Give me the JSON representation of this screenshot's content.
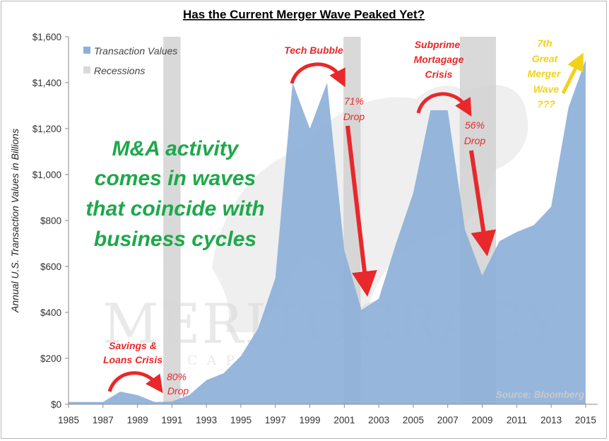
{
  "chart_data": {
    "type": "area",
    "title": "Has the Current Merger Wave Peaked Yet?",
    "xlabel": "",
    "ylabel": "Annual U.S. Transaction Values in Billions",
    "xlim": [
      1985,
      2015.7
    ],
    "ylim": [
      0,
      1600
    ],
    "y_ticks": [
      0,
      200,
      400,
      600,
      800,
      1000,
      1200,
      1400,
      1600
    ],
    "y_tick_labels": [
      "$0",
      "$200",
      "$400",
      "$600",
      "$800",
      "$1,000",
      "$1,200",
      "$1,400",
      "$1,600"
    ],
    "x_ticks": [
      1985,
      1987,
      1989,
      1991,
      1993,
      1995,
      1997,
      1999,
      2001,
      2003,
      2005,
      2007,
      2009,
      2011,
      2013,
      2015
    ],
    "x_tick_labels": [
      "1985",
      "1987",
      "1989",
      "1991",
      "1993",
      "1995",
      "1997",
      "1999",
      "2001",
      "2003",
      "2005",
      "2007",
      "2009",
      "2011",
      "2013",
      "2015"
    ],
    "series": [
      {
        "name": "Transaction Values",
        "color": "#8db0d9",
        "x": [
          1985,
          1986,
          1987,
          1988,
          1989,
          1990,
          1991,
          1992,
          1993,
          1994,
          1995,
          1996,
          1997,
          1998,
          1999,
          2000,
          2001,
          2002,
          2003,
          2004,
          2005,
          2006,
          2007,
          2008,
          2009,
          2010,
          2011,
          2012,
          2013,
          2014,
          2015
        ],
        "values": [
          10,
          10,
          10,
          55,
          40,
          10,
          12,
          40,
          105,
          135,
          210,
          330,
          550,
          1400,
          1200,
          1400,
          670,
          410,
          460,
          700,
          920,
          1280,
          1280,
          760,
          560,
          710,
          750,
          780,
          860,
          1290,
          1500
        ]
      }
    ],
    "recessions": [
      {
        "name": "Recessions",
        "start": 1990.5,
        "end": 1991.5
      },
      {
        "name": "Recessions",
        "start": 2000.95,
        "end": 2001.95
      },
      {
        "name": "Recessions",
        "start": 2007.7,
        "end": 2009.8
      }
    ],
    "recession_color": "#d9d9d9",
    "legend": [
      {
        "label": "Transaction Values",
        "color": "#8db0d9"
      },
      {
        "label": "Recessions",
        "color": "#d9d9d9"
      }
    ],
    "legend_position": "top-left",
    "annotations": {
      "savings_loans": [
        "Savings &",
        "Loans Crisis"
      ],
      "drop_80": [
        "80%",
        "Drop"
      ],
      "tech_bubble": "Tech Bubble",
      "drop_71": [
        "71%",
        "Drop"
      ],
      "subprime": [
        "Subprime",
        "Mortagage",
        "Crisis"
      ],
      "drop_56": [
        "56%",
        "Drop"
      ],
      "seventh_wave": [
        "7th",
        "Great",
        "Merger",
        "Wave",
        "???"
      ],
      "main_message": [
        "M&A activity",
        "comes in waves",
        "that coincide with",
        "business cycles"
      ],
      "source": "Source: Bloomberg"
    },
    "watermark": {
      "name": "MERITOCRACY",
      "subtitle": "CAPITAL PARTNERS"
    },
    "colors": {
      "red": "#e8282b",
      "green": "#1ea84b",
      "yellow": "#f2d11a"
    }
  }
}
